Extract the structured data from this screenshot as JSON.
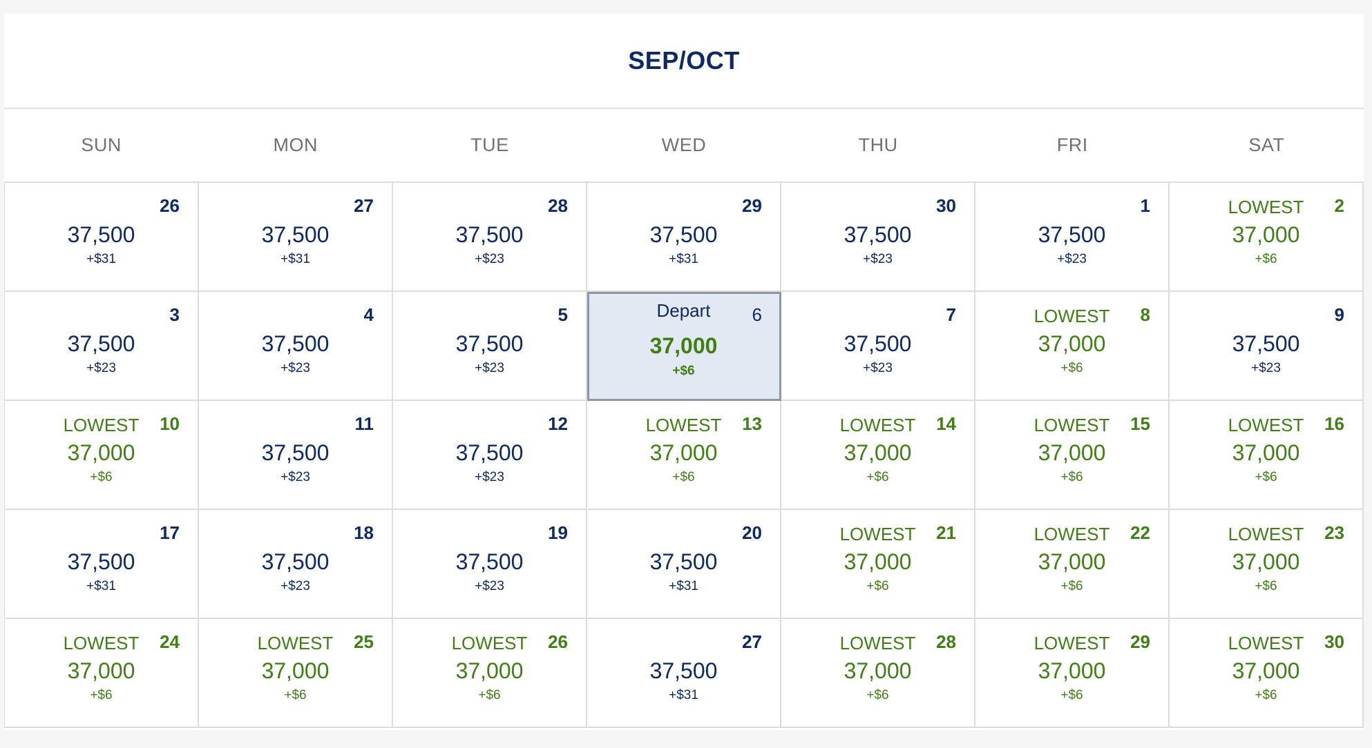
{
  "calendar": {
    "title": "SEP/OCT",
    "weekdays": [
      "SUN",
      "MON",
      "TUE",
      "WED",
      "THU",
      "FRI",
      "SAT"
    ],
    "colors": {
      "navy": "#0e2a66",
      "green": "#3f7f14",
      "selected_bg": "#e3e9f2",
      "selected_border": "#8e97a6"
    },
    "days": [
      {
        "day": "26",
        "price": "37,500",
        "fee": "+$31",
        "badge": "",
        "lowest": false,
        "selected": false
      },
      {
        "day": "27",
        "price": "37,500",
        "fee": "+$31",
        "badge": "",
        "lowest": false,
        "selected": false
      },
      {
        "day": "28",
        "price": "37,500",
        "fee": "+$23",
        "badge": "",
        "lowest": false,
        "selected": false
      },
      {
        "day": "29",
        "price": "37,500",
        "fee": "+$31",
        "badge": "",
        "lowest": false,
        "selected": false
      },
      {
        "day": "30",
        "price": "37,500",
        "fee": "+$23",
        "badge": "",
        "lowest": false,
        "selected": false
      },
      {
        "day": "1",
        "price": "37,500",
        "fee": "+$23",
        "badge": "",
        "lowest": false,
        "selected": false
      },
      {
        "day": "2",
        "price": "37,000",
        "fee": "+$6",
        "badge": "LOWEST",
        "lowest": true,
        "selected": false
      },
      {
        "day": "3",
        "price": "37,500",
        "fee": "+$23",
        "badge": "",
        "lowest": false,
        "selected": false
      },
      {
        "day": "4",
        "price": "37,500",
        "fee": "+$23",
        "badge": "",
        "lowest": false,
        "selected": false
      },
      {
        "day": "5",
        "price": "37,500",
        "fee": "+$23",
        "badge": "",
        "lowest": false,
        "selected": false
      },
      {
        "day": "6",
        "price": "37,000",
        "fee": "+$6",
        "badge": "Depart",
        "lowest": true,
        "selected": true
      },
      {
        "day": "7",
        "price": "37,500",
        "fee": "+$23",
        "badge": "",
        "lowest": false,
        "selected": false
      },
      {
        "day": "8",
        "price": "37,000",
        "fee": "+$6",
        "badge": "LOWEST",
        "lowest": true,
        "selected": false
      },
      {
        "day": "9",
        "price": "37,500",
        "fee": "+$23",
        "badge": "",
        "lowest": false,
        "selected": false
      },
      {
        "day": "10",
        "price": "37,000",
        "fee": "+$6",
        "badge": "LOWEST",
        "lowest": true,
        "selected": false
      },
      {
        "day": "11",
        "price": "37,500",
        "fee": "+$23",
        "badge": "",
        "lowest": false,
        "selected": false
      },
      {
        "day": "12",
        "price": "37,500",
        "fee": "+$23",
        "badge": "",
        "lowest": false,
        "selected": false
      },
      {
        "day": "13",
        "price": "37,000",
        "fee": "+$6",
        "badge": "LOWEST",
        "lowest": true,
        "selected": false
      },
      {
        "day": "14",
        "price": "37,000",
        "fee": "+$6",
        "badge": "LOWEST",
        "lowest": true,
        "selected": false
      },
      {
        "day": "15",
        "price": "37,000",
        "fee": "+$6",
        "badge": "LOWEST",
        "lowest": true,
        "selected": false
      },
      {
        "day": "16",
        "price": "37,000",
        "fee": "+$6",
        "badge": "LOWEST",
        "lowest": true,
        "selected": false
      },
      {
        "day": "17",
        "price": "37,500",
        "fee": "+$31",
        "badge": "",
        "lowest": false,
        "selected": false
      },
      {
        "day": "18",
        "price": "37,500",
        "fee": "+$23",
        "badge": "",
        "lowest": false,
        "selected": false
      },
      {
        "day": "19",
        "price": "37,500",
        "fee": "+$23",
        "badge": "",
        "lowest": false,
        "selected": false
      },
      {
        "day": "20",
        "price": "37,500",
        "fee": "+$31",
        "badge": "",
        "lowest": false,
        "selected": false
      },
      {
        "day": "21",
        "price": "37,000",
        "fee": "+$6",
        "badge": "LOWEST",
        "lowest": true,
        "selected": false
      },
      {
        "day": "22",
        "price": "37,000",
        "fee": "+$6",
        "badge": "LOWEST",
        "lowest": true,
        "selected": false
      },
      {
        "day": "23",
        "price": "37,000",
        "fee": "+$6",
        "badge": "LOWEST",
        "lowest": true,
        "selected": false
      },
      {
        "day": "24",
        "price": "37,000",
        "fee": "+$6",
        "badge": "LOWEST",
        "lowest": true,
        "selected": false
      },
      {
        "day": "25",
        "price": "37,000",
        "fee": "+$6",
        "badge": "LOWEST",
        "lowest": true,
        "selected": false
      },
      {
        "day": "26",
        "price": "37,000",
        "fee": "+$6",
        "badge": "LOWEST",
        "lowest": true,
        "selected": false
      },
      {
        "day": "27",
        "price": "37,500",
        "fee": "+$31",
        "badge": "",
        "lowest": false,
        "selected": false
      },
      {
        "day": "28",
        "price": "37,000",
        "fee": "+$6",
        "badge": "LOWEST",
        "lowest": true,
        "selected": false
      },
      {
        "day": "29",
        "price": "37,000",
        "fee": "+$6",
        "badge": "LOWEST",
        "lowest": true,
        "selected": false
      },
      {
        "day": "30",
        "price": "37,000",
        "fee": "+$6",
        "badge": "LOWEST",
        "lowest": true,
        "selected": false
      }
    ]
  }
}
